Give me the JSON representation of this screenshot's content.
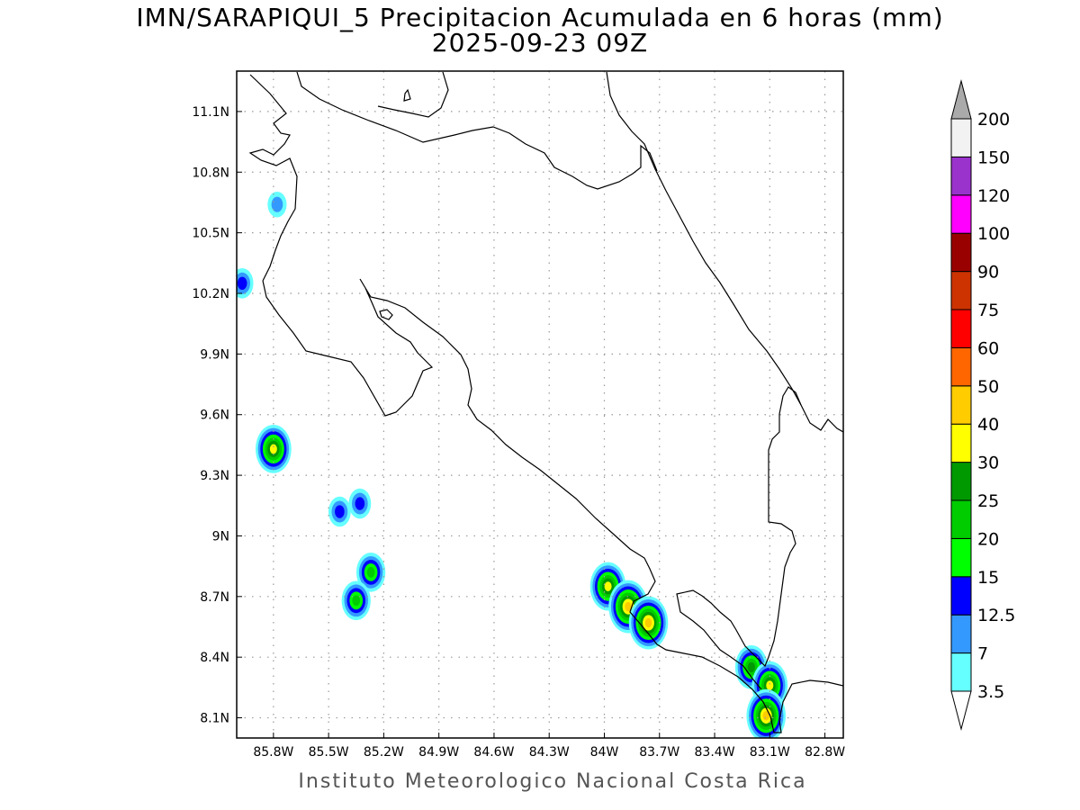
{
  "title": {
    "line1": "IMN/SARAPIQUI_5 Precipitacion Acumulada en 6 horas (mm)",
    "line2": "2025-09-23 09Z"
  },
  "footer": "Instituto Meteorologico Nacional Costa Rica",
  "map": {
    "lon_range": [
      -86.0,
      -82.7
    ],
    "lat_range": [
      8.0,
      11.3
    ],
    "lon_ticks": [
      {
        "value": -85.8,
        "label": "85.8W"
      },
      {
        "value": -85.5,
        "label": "85.5W"
      },
      {
        "value": -85.2,
        "label": "85.2W"
      },
      {
        "value": -84.9,
        "label": "84.9W"
      },
      {
        "value": -84.6,
        "label": "84.6W"
      },
      {
        "value": -84.3,
        "label": "84.3W"
      },
      {
        "value": -84.0,
        "label": "84W"
      },
      {
        "value": -83.7,
        "label": "83.7W"
      },
      {
        "value": -83.4,
        "label": "83.4W"
      },
      {
        "value": -83.1,
        "label": "83.1W"
      },
      {
        "value": -82.8,
        "label": "82.8W"
      }
    ],
    "lat_ticks": [
      {
        "value": 11.1,
        "label": "11.1N"
      },
      {
        "value": 10.8,
        "label": "10.8N"
      },
      {
        "value": 10.5,
        "label": "10.5N"
      },
      {
        "value": 10.2,
        "label": "10.2N"
      },
      {
        "value": 9.9,
        "label": "9.9N"
      },
      {
        "value": 9.6,
        "label": "9.6N"
      },
      {
        "value": 9.3,
        "label": "9.3N"
      },
      {
        "value": 9.0,
        "label": "9N"
      },
      {
        "value": 8.7,
        "label": "8.7N"
      },
      {
        "value": 8.4,
        "label": "8.4N"
      },
      {
        "value": 8.1,
        "label": "8.1N"
      }
    ],
    "gridlines": "dotted",
    "precip_cells": [
      {
        "lon": -85.8,
        "lat": 9.43,
        "peak_mm": 35
      },
      {
        "lon": -85.44,
        "lat": 9.12,
        "peak_mm": 13
      },
      {
        "lon": -85.33,
        "lat": 9.16,
        "peak_mm": 13
      },
      {
        "lon": -85.27,
        "lat": 8.82,
        "peak_mm": 20
      },
      {
        "lon": -85.35,
        "lat": 8.68,
        "peak_mm": 20
      },
      {
        "lon": -85.97,
        "lat": 10.25,
        "peak_mm": 13
      },
      {
        "lon": -85.78,
        "lat": 10.64,
        "peak_mm": 10
      },
      {
        "lon": -83.98,
        "lat": 8.75,
        "peak_mm": 35
      },
      {
        "lon": -83.87,
        "lat": 8.65,
        "peak_mm": 45
      },
      {
        "lon": -83.76,
        "lat": 8.57,
        "peak_mm": 45
      },
      {
        "lon": -83.2,
        "lat": 8.35,
        "peak_mm": 25
      },
      {
        "lon": -83.1,
        "lat": 8.26,
        "peak_mm": 35
      },
      {
        "lon": -83.12,
        "lat": 8.11,
        "peak_mm": 45
      }
    ]
  },
  "colorbar": {
    "levels": [
      {
        "label": "3.5",
        "color": "#66ffff"
      },
      {
        "label": "7",
        "color": "#3399ff"
      },
      {
        "label": "12.5",
        "color": "#0000ff"
      },
      {
        "label": "15",
        "color": "#00ff00"
      },
      {
        "label": "20",
        "color": "#00cc00"
      },
      {
        "label": "25",
        "color": "#009900"
      },
      {
        "label": "30",
        "color": "#ffff00"
      },
      {
        "label": "40",
        "color": "#ffcc00"
      },
      {
        "label": "50",
        "color": "#ff6600"
      },
      {
        "label": "60",
        "color": "#ff0000"
      },
      {
        "label": "75",
        "color": "#cc3300"
      },
      {
        "label": "90",
        "color": "#990000"
      },
      {
        "label": "100",
        "color": "#ff00ff"
      },
      {
        "label": "120",
        "color": "#9933cc"
      },
      {
        "label": "150",
        "color": "#f2f2f2"
      },
      {
        "label": "200",
        "color": "#aaaaaa"
      }
    ]
  }
}
